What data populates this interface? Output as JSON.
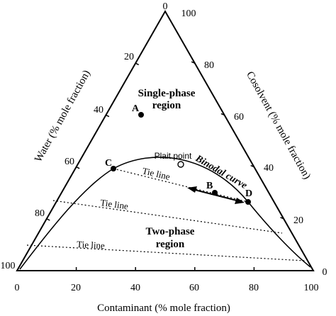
{
  "diagram": {
    "colors": {
      "ink": "#000000",
      "background": "#ffffff"
    },
    "axes": {
      "bottom": {
        "title": "Contaminant (% mole fraction)",
        "ticks": [
          "0",
          "20",
          "40",
          "60",
          "80",
          "100"
        ]
      },
      "left": {
        "title": "Water (% mole fraction)",
        "ticks": [
          "0",
          "20",
          "40",
          "60",
          "80",
          "100"
        ]
      },
      "right": {
        "title": "Cosolvent (% mole fraction)",
        "ticks": [
          "100",
          "80",
          "60",
          "40",
          "20",
          "0"
        ]
      }
    },
    "regions": {
      "single_phase_line1": "Single-phase",
      "single_phase_line2": "region",
      "two_phase_line1": "Two-phase",
      "two_phase_line2": "region"
    },
    "points": {
      "a": "A",
      "b": "B",
      "c": "C",
      "d": "D"
    },
    "plait_point": "Plait point",
    "binodal_curve": "Binodal curve",
    "tie_lines": [
      "Tie line",
      "Tie line",
      "Tie line"
    ]
  }
}
